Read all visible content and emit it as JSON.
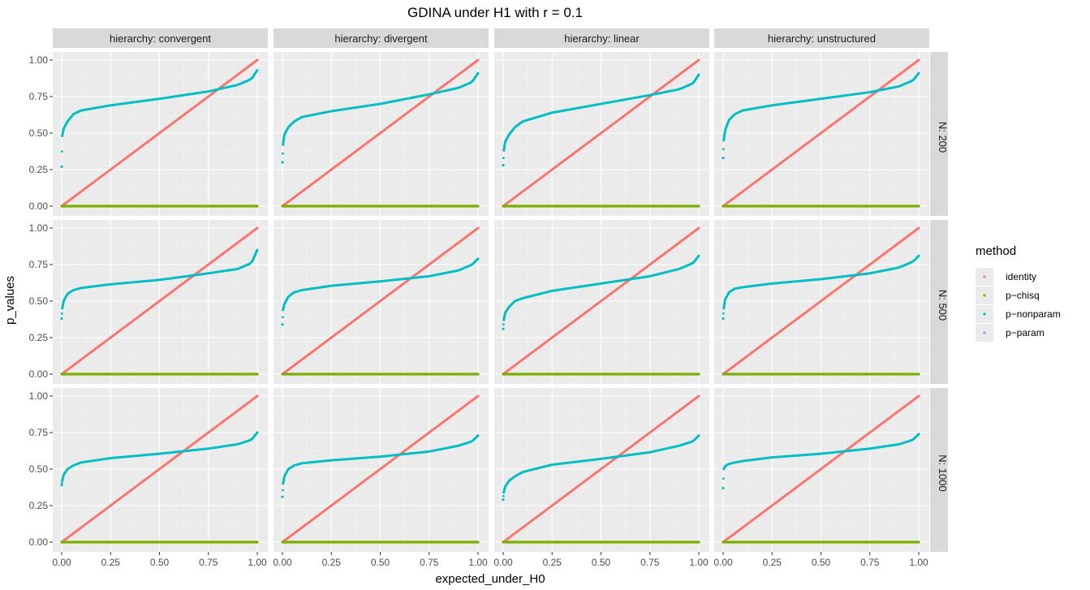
{
  "chart_data": {
    "type": "scatter",
    "title": "GDINA under H1 with r = 0.1",
    "xlabel": "expected_under_H0",
    "ylabel": "p_values",
    "xlim": [
      0,
      1
    ],
    "ylim": [
      0,
      1
    ],
    "x_ticks": [
      "0.00",
      "0.25",
      "0.50",
      "0.75",
      "1.00"
    ],
    "y_ticks": [
      "0.00",
      "0.25",
      "0.50",
      "0.75",
      "1.00"
    ],
    "facet_cols": [
      "hierarchy: convergent",
      "hierarchy: divergent",
      "hierarchy: linear",
      "hierarchy: unstructured"
    ],
    "facet_rows": [
      "N: 200",
      "N: 500",
      "N: 1000"
    ],
    "grid": true,
    "legend": {
      "title": "method",
      "position": "right",
      "entries": [
        {
          "label": "identity",
          "color": "#F8766D"
        },
        {
          "label": "p−chisq",
          "color": "#7CAE00"
        },
        {
          "label": "p−nonparam",
          "color": "#00BFC4"
        },
        {
          "label": "p−param",
          "color": "#C77CFF"
        }
      ]
    },
    "series_note": "identity: y = x; p-chisq: y = 0 for all x; p-param not visible",
    "nonparam_curves": [
      [
        {
          "y0": 0.27,
          "q": [
            [
              0.003,
              0.48
            ],
            [
              0.01,
              0.53
            ],
            [
              0.03,
              0.58
            ],
            [
              0.06,
              0.63
            ],
            [
              0.1,
              0.655
            ],
            [
              0.25,
              0.69
            ],
            [
              0.5,
              0.735
            ],
            [
              0.75,
              0.785
            ],
            [
              0.9,
              0.83
            ],
            [
              0.97,
              0.87
            ],
            [
              1.0,
              0.93
            ]
          ]
        },
        {
          "y0": 0.3,
          "q": [
            [
              0.003,
              0.42
            ],
            [
              0.01,
              0.49
            ],
            [
              0.03,
              0.54
            ],
            [
              0.06,
              0.58
            ],
            [
              0.1,
              0.61
            ],
            [
              0.25,
              0.65
            ],
            [
              0.5,
              0.7
            ],
            [
              0.75,
              0.765
            ],
            [
              0.9,
              0.81
            ],
            [
              0.97,
              0.85
            ],
            [
              1.0,
              0.91
            ]
          ]
        },
        {
          "y0": 0.28,
          "q": [
            [
              0.003,
              0.38
            ],
            [
              0.01,
              0.44
            ],
            [
              0.03,
              0.49
            ],
            [
              0.06,
              0.54
            ],
            [
              0.1,
              0.58
            ],
            [
              0.25,
              0.64
            ],
            [
              0.5,
              0.7
            ],
            [
              0.75,
              0.76
            ],
            [
              0.9,
              0.8
            ],
            [
              0.97,
              0.84
            ],
            [
              1.0,
              0.9
            ]
          ]
        },
        {
          "y0": 0.33,
          "q": [
            [
              0.003,
              0.45
            ],
            [
              0.01,
              0.52
            ],
            [
              0.03,
              0.59
            ],
            [
              0.06,
              0.63
            ],
            [
              0.1,
              0.655
            ],
            [
              0.25,
              0.69
            ],
            [
              0.5,
              0.735
            ],
            [
              0.75,
              0.78
            ],
            [
              0.9,
              0.82
            ],
            [
              0.97,
              0.86
            ],
            [
              1.0,
              0.91
            ]
          ]
        }
      ],
      [
        {
          "y0": 0.38,
          "q": [
            [
              0.003,
              0.45
            ],
            [
              0.01,
              0.5
            ],
            [
              0.03,
              0.55
            ],
            [
              0.06,
              0.575
            ],
            [
              0.1,
              0.59
            ],
            [
              0.25,
              0.615
            ],
            [
              0.5,
              0.645
            ],
            [
              0.75,
              0.69
            ],
            [
              0.9,
              0.72
            ],
            [
              0.97,
              0.76
            ],
            [
              1.0,
              0.85
            ]
          ]
        },
        {
          "y0": 0.34,
          "q": [
            [
              0.003,
              0.44
            ],
            [
              0.01,
              0.48
            ],
            [
              0.03,
              0.53
            ],
            [
              0.06,
              0.56
            ],
            [
              0.1,
              0.575
            ],
            [
              0.25,
              0.605
            ],
            [
              0.5,
              0.635
            ],
            [
              0.75,
              0.67
            ],
            [
              0.9,
              0.71
            ],
            [
              0.97,
              0.75
            ],
            [
              1.0,
              0.79
            ]
          ]
        },
        {
          "y0": 0.31,
          "q": [
            [
              0.003,
              0.37
            ],
            [
              0.01,
              0.42
            ],
            [
              0.03,
              0.46
            ],
            [
              0.06,
              0.5
            ],
            [
              0.1,
              0.52
            ],
            [
              0.25,
              0.57
            ],
            [
              0.5,
              0.62
            ],
            [
              0.75,
              0.67
            ],
            [
              0.9,
              0.72
            ],
            [
              0.97,
              0.76
            ],
            [
              1.0,
              0.81
            ]
          ]
        },
        {
          "y0": 0.38,
          "q": [
            [
              0.003,
              0.45
            ],
            [
              0.01,
              0.51
            ],
            [
              0.03,
              0.56
            ],
            [
              0.06,
              0.585
            ],
            [
              0.1,
              0.595
            ],
            [
              0.25,
              0.62
            ],
            [
              0.5,
              0.65
            ],
            [
              0.75,
              0.69
            ],
            [
              0.9,
              0.73
            ],
            [
              0.97,
              0.77
            ],
            [
              1.0,
              0.81
            ]
          ]
        }
      ],
      [
        {
          "y0": 0.39,
          "q": [
            [
              0.003,
              0.42
            ],
            [
              0.01,
              0.46
            ],
            [
              0.03,
              0.5
            ],
            [
              0.06,
              0.525
            ],
            [
              0.1,
              0.545
            ],
            [
              0.25,
              0.575
            ],
            [
              0.5,
              0.605
            ],
            [
              0.75,
              0.64
            ],
            [
              0.9,
              0.67
            ],
            [
              0.97,
              0.7
            ],
            [
              1.0,
              0.75
            ]
          ]
        },
        {
          "y0": 0.31,
          "q": [
            [
              0.003,
              0.4
            ],
            [
              0.01,
              0.45
            ],
            [
              0.03,
              0.5
            ],
            [
              0.06,
              0.525
            ],
            [
              0.1,
              0.54
            ],
            [
              0.25,
              0.56
            ],
            [
              0.5,
              0.585
            ],
            [
              0.75,
              0.62
            ],
            [
              0.9,
              0.66
            ],
            [
              0.97,
              0.69
            ],
            [
              1.0,
              0.73
            ]
          ]
        },
        {
          "y0": 0.29,
          "q": [
            [
              0.003,
              0.34
            ],
            [
              0.01,
              0.38
            ],
            [
              0.03,
              0.42
            ],
            [
              0.06,
              0.45
            ],
            [
              0.1,
              0.48
            ],
            [
              0.25,
              0.53
            ],
            [
              0.5,
              0.57
            ],
            [
              0.75,
              0.615
            ],
            [
              0.9,
              0.66
            ],
            [
              0.97,
              0.69
            ],
            [
              1.0,
              0.73
            ]
          ]
        },
        {
          "y0": 0.37,
          "q": [
            [
              0.003,
              0.5
            ],
            [
              0.01,
              0.52
            ],
            [
              0.03,
              0.535
            ],
            [
              0.06,
              0.545
            ],
            [
              0.1,
              0.555
            ],
            [
              0.25,
              0.58
            ],
            [
              0.5,
              0.605
            ],
            [
              0.75,
              0.64
            ],
            [
              0.9,
              0.67
            ],
            [
              0.97,
              0.7
            ],
            [
              1.0,
              0.74
            ]
          ]
        }
      ]
    ]
  }
}
